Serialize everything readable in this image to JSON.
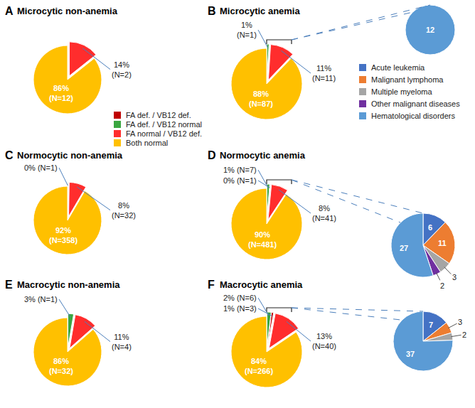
{
  "chart_data": [
    {
      "type": "legend",
      "series": [
        {
          "name": "FA def. / VB12 def.",
          "color": "#c00000"
        },
        {
          "name": "FA def. / VB12 normal",
          "color": "#3aa640"
        },
        {
          "name": "FA normal / VB12 def.",
          "color": "#ff2d2d"
        },
        {
          "name": "Both normal",
          "color": "#ffc000"
        }
      ]
    },
    {
      "type": "legend",
      "series": [
        {
          "name": "Acute leukemia",
          "color": "#4472c4"
        },
        {
          "name": "Malignant lymphoma",
          "color": "#ed7d31"
        },
        {
          "name": "Multiple myeloma",
          "color": "#a5a5a5"
        },
        {
          "name": "Other malignant diseases",
          "color": "#7030a0"
        },
        {
          "name": "Hematological disorders",
          "color": "#5b9bd5"
        }
      ]
    },
    {
      "type": "pie",
      "panel": "A",
      "title": "Microcytic non-anemia",
      "categories": [
        "FA normal / VB12 def.",
        "Both normal"
      ],
      "values": [
        2,
        12
      ],
      "value_labels": [
        "14%\n(N=2)",
        "86%\n(N=12)"
      ],
      "colors": [
        "#ff2d2d",
        "#ffc000"
      ]
    },
    {
      "type": "pie",
      "panel": "B",
      "title": "Microcytic anemia",
      "categories": [
        "FA def. / VB12 normal",
        "FA normal / VB12 def.",
        "Both normal"
      ],
      "values": [
        1,
        11,
        87
      ],
      "value_labels": [
        "1%\n(N=1)",
        "11%\n(N=11)",
        "88%\n(N=87)"
      ],
      "colors": [
        "#3aa640",
        "#ff2d2d",
        "#ffc000"
      ],
      "breakdown": {
        "type": "pie",
        "categories": [
          "Hematological disorders"
        ],
        "values": [
          12
        ],
        "colors": [
          "#5b9bd5"
        ],
        "data_labels": true
      }
    },
    {
      "type": "pie",
      "panel": "C",
      "title": "Normocytic non-anemia",
      "categories": [
        "FA def. / VB12 normal",
        "FA normal / VB12 def.",
        "Both normal"
      ],
      "values": [
        1,
        32,
        358
      ],
      "value_labels": [
        "0% (N=1)",
        "8%\n(N=32)",
        "92%\n(N=358)"
      ],
      "colors": [
        "#3aa640",
        "#ff2d2d",
        "#ffc000"
      ]
    },
    {
      "type": "pie",
      "panel": "D",
      "title": "Normocytic anemia",
      "categories": [
        "FA def. / VB12 normal",
        "FA def. / VB12 def.",
        "FA normal / VB12 def.",
        "Both normal"
      ],
      "values": [
        7,
        1,
        41,
        481
      ],
      "value_labels": [
        "1% (N=7)",
        "0% (N=1)",
        "8%\n(N=41)",
        "90%\n(N=481)"
      ],
      "colors": [
        "#3aa640",
        "#c00000",
        "#ff2d2d",
        "#ffc000"
      ],
      "breakdown": {
        "type": "pie",
        "categories": [
          "Acute leukemia",
          "Malignant lymphoma",
          "Multiple myeloma",
          "Other malignant diseases",
          "Hematological disorders"
        ],
        "values": [
          6,
          11,
          3,
          2,
          27
        ],
        "colors": [
          "#4472c4",
          "#ed7d31",
          "#a5a5a5",
          "#7030a0",
          "#5b9bd5"
        ],
        "data_labels": true
      }
    },
    {
      "type": "pie",
      "panel": "E",
      "title": "Macrocytic non-anemia",
      "categories": [
        "FA def. / VB12 normal",
        "FA normal / VB12 def.",
        "Both normal"
      ],
      "values": [
        1,
        4,
        32
      ],
      "value_labels": [
        "3% (N=1)",
        "11%\n(N=4)",
        "86%\n(N=32)"
      ],
      "colors": [
        "#3aa640",
        "#ff2d2d",
        "#ffc000"
      ]
    },
    {
      "type": "pie",
      "panel": "F",
      "title": "Macrocytic anemia",
      "categories": [
        "FA def. / VB12 normal",
        "FA def. / VB12 def.",
        "FA normal / VB12 def.",
        "Both normal"
      ],
      "values": [
        6,
        3,
        40,
        266
      ],
      "value_labels": [
        "2% (N=6)",
        "1% (N=3)",
        "13%\n(N=40)",
        "84%\n(N=266)"
      ],
      "colors": [
        "#3aa640",
        "#c00000",
        "#ff2d2d",
        "#ffc000"
      ],
      "breakdown": {
        "type": "pie",
        "categories": [
          "Acute leukemia",
          "Malignant lymphoma",
          "Multiple myeloma",
          "Hematological disorders"
        ],
        "values": [
          7,
          3,
          2,
          37
        ],
        "colors": [
          "#4472c4",
          "#ed7d31",
          "#a5a5a5",
          "#5b9bd5"
        ],
        "data_labels": true
      }
    }
  ]
}
